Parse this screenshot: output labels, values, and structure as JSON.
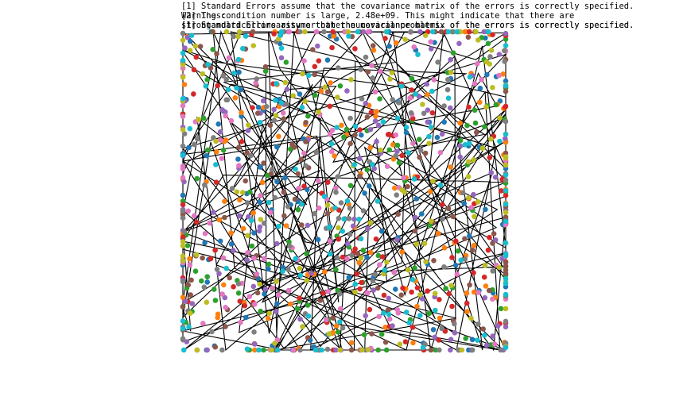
{
  "notes": [
    "[1] Standard Errors assume that the covariance matrix of the errors is correctly specified.",
    "Warnings:",
    "[1] Standard Errors assume that the covariance matrix of the errors is correctly specified.",
    "[2] The condition number is large, 2.48e+09. This might indicate that there are",
    "strong multicollinearity or other numerical problems.",
    "[1] Standard Errors assume that the covariance matrix of the errors is correctly specified."
  ],
  "chart_data": {
    "type": "scatter",
    "title": "",
    "xlabel": "",
    "ylabel": "",
    "xlim": [
      0,
      1
    ],
    "ylim": [
      0,
      1
    ],
    "grid": false,
    "axes_visible": false,
    "palette": [
      "#1f77b4",
      "#ff7f0e",
      "#2ca02c",
      "#d62728",
      "#9467bd",
      "#8c564b",
      "#e377c2",
      "#7f7f7f",
      "#bcbd22",
      "#17becf"
    ],
    "line_color": "#000000",
    "series_count": 10,
    "points_per_series": 110,
    "path_vertices": 160,
    "seed": 20240611
  }
}
